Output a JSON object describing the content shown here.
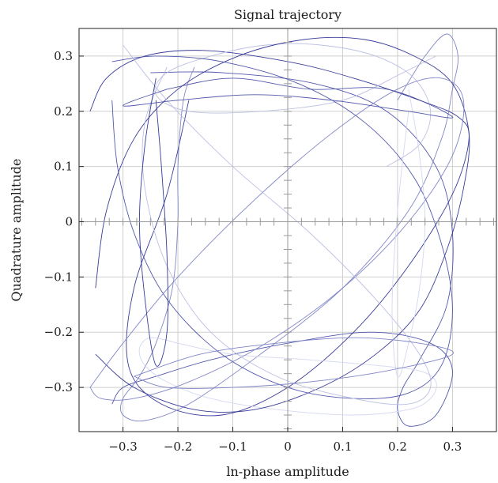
{
  "chart_data": {
    "type": "line",
    "title": "Signal trajectory",
    "xlabel": "ln-phase amplitude",
    "ylabel": "Quadrature amplitude",
    "xlim": [
      -0.38,
      0.38
    ],
    "ylim": [
      -0.38,
      0.35
    ],
    "grid": true,
    "x_ticks": [
      {
        "value": -0.3,
        "label": "−0.3"
      },
      {
        "value": -0.2,
        "label": "−0.2"
      },
      {
        "value": -0.1,
        "label": "−0.1"
      },
      {
        "value": 0,
        "label": "0"
      },
      {
        "value": 0.1,
        "label": "0.1"
      },
      {
        "value": 0.2,
        "label": "0.2"
      },
      {
        "value": 0.3,
        "label": "0.3"
      }
    ],
    "y_ticks": [
      {
        "value": 0.3,
        "label": "0.3"
      },
      {
        "value": 0.2,
        "label": "0.2"
      },
      {
        "value": 0.1,
        "label": "0.1"
      },
      {
        "value": 0,
        "label": "0"
      },
      {
        "value": -0.1,
        "label": "−0.1"
      },
      {
        "value": -0.2,
        "label": "−0.2"
      },
      {
        "value": -0.3,
        "label": "−0.3"
      }
    ],
    "minor_tick_step": 0.025,
    "series_colors": [
      "#2e3192",
      "#4a4fa8",
      "#7a7fc4",
      "#b8bde0",
      "#d2d6ee"
    ],
    "series": [
      {
        "x": [
          -0.36,
          -0.33,
          -0.26,
          -0.15,
          0.0,
          0.12,
          0.24,
          0.31,
          0.33,
          0.3,
          0.22,
          0.12,
          0.0,
          -0.12,
          -0.23,
          -0.29,
          -0.28,
          -0.22,
          -0.18
        ],
        "y": [
          0.2,
          0.26,
          0.3,
          0.31,
          0.29,
          0.26,
          0.22,
          0.19,
          0.15,
          0.05,
          -0.08,
          -0.2,
          -0.3,
          -0.35,
          -0.33,
          -0.26,
          -0.12,
          0.05,
          0.22
        ]
      },
      {
        "x": [
          -0.25,
          -0.12,
          0.05,
          0.18,
          0.27,
          0.3,
          0.29,
          0.24,
          0.21,
          0.2,
          0.22,
          0.27,
          0.3,
          0.26,
          0.15,
          0.0,
          -0.14,
          -0.24,
          -0.3,
          -0.32
        ],
        "y": [
          0.27,
          0.27,
          0.25,
          0.2,
          0.1,
          -0.02,
          -0.15,
          -0.25,
          -0.3,
          -0.34,
          -0.37,
          -0.35,
          -0.27,
          -0.22,
          -0.2,
          -0.22,
          -0.25,
          -0.28,
          -0.3,
          -0.33
        ]
      },
      {
        "x": [
          -0.17,
          -0.19,
          -0.2,
          -0.2,
          -0.21,
          -0.24,
          -0.27,
          -0.3,
          -0.3,
          -0.26,
          -0.18,
          -0.05,
          0.1,
          0.22,
          0.28,
          0.3,
          0.31,
          0.29,
          0.25,
          0.2
        ],
        "y": [
          0.28,
          0.22,
          0.1,
          0.0,
          -0.12,
          -0.22,
          -0.28,
          -0.32,
          -0.35,
          -0.36,
          -0.33,
          -0.24,
          -0.12,
          0.02,
          0.15,
          0.24,
          0.3,
          0.34,
          0.3,
          0.22
        ]
      },
      {
        "x": [
          0.27,
          0.21,
          0.1,
          -0.05,
          -0.18,
          -0.24,
          -0.22,
          -0.14,
          -0.04,
          0.06,
          0.16,
          0.23,
          0.26,
          0.24,
          0.18
        ],
        "y": [
          0.3,
          0.27,
          0.22,
          0.2,
          0.2,
          0.23,
          0.27,
          0.3,
          0.32,
          0.32,
          0.3,
          0.26,
          0.2,
          0.14,
          0.1
        ]
      },
      {
        "x": [
          -0.2,
          -0.1,
          0.04,
          0.16,
          0.24,
          0.27,
          0.26,
          0.22,
          0.12,
          -0.02,
          -0.14,
          -0.22,
          -0.26,
          -0.27,
          -0.25,
          -0.2
        ],
        "y": [
          -0.22,
          -0.24,
          -0.25,
          -0.26,
          -0.27,
          -0.29,
          -0.32,
          -0.34,
          -0.35,
          -0.34,
          -0.32,
          -0.29,
          -0.26,
          -0.23,
          -0.21,
          -0.22
        ]
      },
      {
        "x": [
          -0.35,
          -0.28,
          -0.17,
          -0.06,
          0.06,
          0.16,
          0.24,
          0.29,
          0.32,
          0.33,
          0.3,
          0.23,
          0.14,
          0.03,
          -0.09,
          -0.2,
          -0.28,
          -0.33,
          -0.35
        ],
        "y": [
          -0.24,
          -0.3,
          -0.34,
          -0.34,
          -0.3,
          -0.24,
          -0.16,
          -0.05,
          0.06,
          0.16,
          0.25,
          0.3,
          0.33,
          0.33,
          0.3,
          0.24,
          0.15,
          0.02,
          -0.12
        ]
      },
      {
        "x": [
          -0.32,
          -0.24,
          -0.12,
          0.02,
          0.14,
          0.23,
          0.28,
          0.3,
          0.28,
          0.22,
          0.12,
          0.0,
          -0.12,
          -0.22,
          -0.28,
          -0.31,
          -0.32
        ],
        "y": [
          0.29,
          0.3,
          0.29,
          0.25,
          0.18,
          0.08,
          -0.04,
          -0.16,
          -0.26,
          -0.31,
          -0.32,
          -0.3,
          -0.24,
          -0.14,
          -0.02,
          0.1,
          0.22
        ]
      },
      {
        "x": [
          -0.36,
          -0.3,
          -0.2,
          -0.06,
          0.08,
          0.2,
          0.28,
          0.32,
          0.3,
          0.22,
          0.1,
          -0.04,
          -0.18,
          -0.28,
          -0.34,
          -0.36
        ],
        "y": [
          -0.3,
          -0.22,
          -0.1,
          0.04,
          0.16,
          0.24,
          0.26,
          0.22,
          0.12,
          0.0,
          -0.12,
          -0.22,
          -0.29,
          -0.32,
          -0.32,
          -0.3
        ]
      },
      {
        "x": [
          -0.3,
          -0.22,
          -0.1,
          0.04,
          0.16,
          0.24,
          0.26,
          0.22,
          0.12,
          -0.02,
          -0.14,
          -0.22,
          -0.26,
          -0.26,
          -0.22
        ],
        "y": [
          0.32,
          0.22,
          0.1,
          -0.02,
          -0.14,
          -0.24,
          -0.3,
          -0.33,
          -0.32,
          -0.28,
          -0.2,
          -0.08,
          0.06,
          0.18,
          0.28
        ]
      },
      {
        "x": [
          0.22,
          0.24,
          0.25,
          0.24,
          0.22,
          0.2,
          0.19,
          0.2,
          0.22
        ],
        "y": [
          0.24,
          0.12,
          0.0,
          -0.12,
          -0.22,
          -0.28,
          -0.16,
          0.02,
          0.2
        ]
      },
      {
        "x": [
          -0.24,
          -0.26,
          -0.27,
          -0.26,
          -0.24,
          -0.22,
          -0.22,
          -0.23,
          -0.24
        ],
        "y": [
          0.26,
          0.14,
          0.0,
          -0.14,
          -0.26,
          -0.2,
          -0.06,
          0.1,
          0.22
        ]
      },
      {
        "x": [
          -0.22,
          -0.1,
          0.04,
          0.18,
          0.3,
          0.22,
          0.08,
          -0.06,
          -0.2,
          -0.3,
          -0.22
        ],
        "y": [
          0.24,
          0.26,
          0.24,
          0.24,
          0.19,
          0.2,
          0.22,
          0.23,
          0.22,
          0.21,
          0.24
        ]
      },
      {
        "x": [
          -0.28,
          -0.16,
          -0.02,
          0.12,
          0.24,
          0.3,
          0.18,
          0.04,
          -0.1,
          -0.22,
          -0.28
        ],
        "y": [
          -0.28,
          -0.24,
          -0.22,
          -0.21,
          -0.22,
          -0.24,
          -0.27,
          -0.29,
          -0.3,
          -0.3,
          -0.28
        ]
      }
    ]
  }
}
